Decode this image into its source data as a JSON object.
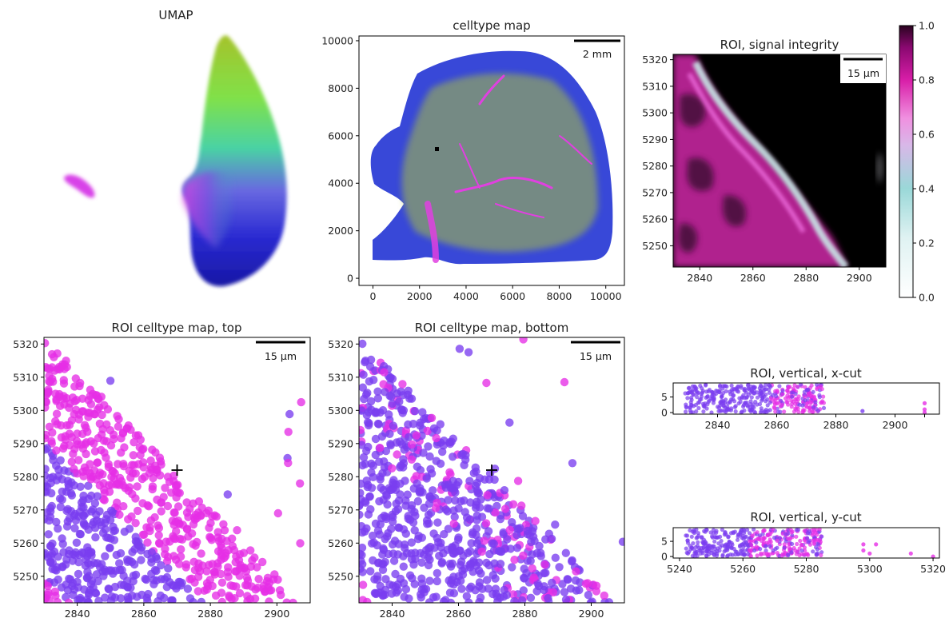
{
  "colors": {
    "magenta": "#e62ee6",
    "violet": "#7a3df0",
    "blue": "#2236d8",
    "olive": "#a8c840",
    "green": "#50e070",
    "black": "#000000"
  },
  "chart_data": [
    {
      "id": "umap",
      "type": "scatter",
      "title": "UMAP",
      "axes": "off",
      "description_of_color": "continuous hue embedding (green-yellow top, magenta left cluster, blue bottom)"
    },
    {
      "id": "celltype_map",
      "type": "scatter",
      "title": "celltype map",
      "xlim": [
        -600,
        10800
      ],
      "ylim": [
        -300,
        10200
      ],
      "xticks": [
        0,
        2000,
        4000,
        6000,
        8000,
        10000
      ],
      "yticks": [
        0,
        2000,
        4000,
        6000,
        8000,
        10000
      ],
      "scalebar": "2 mm"
    },
    {
      "id": "roi_integrity",
      "type": "heatmap",
      "title": "ROI, signal integrity",
      "xlim": [
        2830,
        2910
      ],
      "ylim": [
        5242,
        5322
      ],
      "xticks": [
        2840,
        2860,
        2880,
        2900
      ],
      "yticks": [
        5250,
        5260,
        5270,
        5280,
        5290,
        5300,
        5310,
        5320
      ],
      "scalebar": "15 µm",
      "colorbar": {
        "range": [
          0.0,
          1.0
        ],
        "ticks": [
          "0.0",
          "0.2",
          "0.4",
          "0.6",
          "0.8",
          "1.0"
        ]
      }
    },
    {
      "id": "roi_top",
      "type": "scatter",
      "title": "ROI celltype map, top",
      "xlim": [
        2830,
        2910
      ],
      "ylim": [
        5242,
        5322
      ],
      "xticks": [
        2840,
        2860,
        2880,
        2900
      ],
      "yticks": [
        5250,
        5260,
        5270,
        5280,
        5290,
        5300,
        5310,
        5320
      ],
      "scalebar": "15 µm",
      "marker": {
        "x": 2870,
        "y": 5282
      }
    },
    {
      "id": "roi_bottom",
      "type": "scatter",
      "title": "ROI celltype map, bottom",
      "xlim": [
        2830,
        2910
      ],
      "ylim": [
        5242,
        5322
      ],
      "xticks": [
        2840,
        2860,
        2880,
        2900
      ],
      "yticks": [
        5250,
        5260,
        5270,
        5280,
        5290,
        5300,
        5310,
        5320
      ],
      "scalebar": "15 µm",
      "marker": {
        "x": 2870,
        "y": 5282
      }
    },
    {
      "id": "roi_xcut",
      "type": "scatter",
      "title": "ROI, vertical, x-cut",
      "xlim": [
        2825,
        2915
      ],
      "ylim": [
        -0.5,
        9.5
      ],
      "xticks": [
        2840,
        2860,
        2880,
        2900,
        2910
      ],
      "xtick_labels": [
        "2840",
        "2860",
        "2880",
        "2900",
        ""
      ],
      "yticks": [
        0,
        5
      ]
    },
    {
      "id": "roi_ycut",
      "type": "scatter",
      "title": "ROI, vertical, y-cut",
      "xlim": [
        5238,
        5322
      ],
      "ylim": [
        -0.5,
        9.5
      ],
      "xticks": [
        5240,
        5260,
        5280,
        5300,
        5320
      ],
      "yticks": [
        0,
        5
      ]
    }
  ]
}
